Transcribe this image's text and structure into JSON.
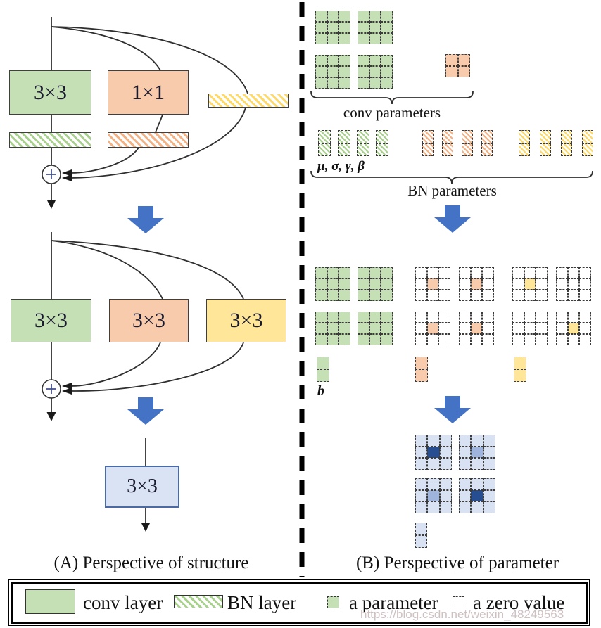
{
  "captions": {
    "left": "(A) Perspective of structure",
    "right": "(B) Perspective of parameter"
  },
  "structure_view": {
    "block_train": {
      "conv3_label": "3×3",
      "conv1_label": "1×1"
    },
    "block_mid": {
      "conv_labels": [
        "3×3",
        "3×3",
        "3×3"
      ]
    },
    "block_final": {
      "conv_label": "3×3"
    },
    "plus_symbol": "+"
  },
  "parameter_view": {
    "labels": {
      "conv_params": "conv parameters",
      "bn_params": "BN parameters",
      "bn_stats": "μ,  σ,  γ,  β",
      "bias": "b"
    },
    "stage1": {
      "conv_groups": [
        {
          "name": "conv3x3-kernels",
          "color": "green",
          "rows": 3,
          "cols": 3,
          "count": 4
        },
        {
          "name": "conv1x1-kernel",
          "color": "orange",
          "rows": 2,
          "cols": 2,
          "count": 1
        }
      ],
      "bn_vector_groups": [
        {
          "color": "green",
          "count": 4
        },
        {
          "color": "orange",
          "count": 4
        },
        {
          "color": "yellow",
          "count": 4
        }
      ]
    },
    "stage2": {
      "kernel_groups": [
        {
          "color": "green",
          "pattern": [
            "full",
            "full",
            "full",
            "full"
          ]
        },
        {
          "color": "orange",
          "pattern": [
            "center",
            "center",
            "center",
            "center"
          ]
        },
        {
          "color": "yellow",
          "pattern": [
            "center",
            "zero",
            "zero",
            "center"
          ]
        }
      ],
      "bias_colors": [
        "green",
        "orange",
        "yellow"
      ]
    },
    "stage3": {
      "center_shades": [
        "dark",
        "medium",
        "medium",
        "dark"
      ],
      "bias": "blue"
    }
  },
  "legend": {
    "conv_layer": "conv layer",
    "bn_layer": "BN layer",
    "a_parameter": "a parameter",
    "a_zero_value": "a zero value"
  },
  "watermark": "https://blog.csdn.net/weixin_48249563",
  "colors": {
    "green": "#c5e0b4",
    "orange": "#f8cbad",
    "yellow": "#ffe699",
    "green_stripe": "#a9d18e",
    "orange_stripe": "#f4b183",
    "yellow_stripe": "#ffd966",
    "blue_fill": "#dae3f3",
    "blue_border": "#4a69a5",
    "blue_cell": "#d9e2f3",
    "blue_dark": "#274e91",
    "blue_medium": "#9fb4dd",
    "arrow_blue": "#4472c4",
    "line": "#2f2f2f"
  }
}
